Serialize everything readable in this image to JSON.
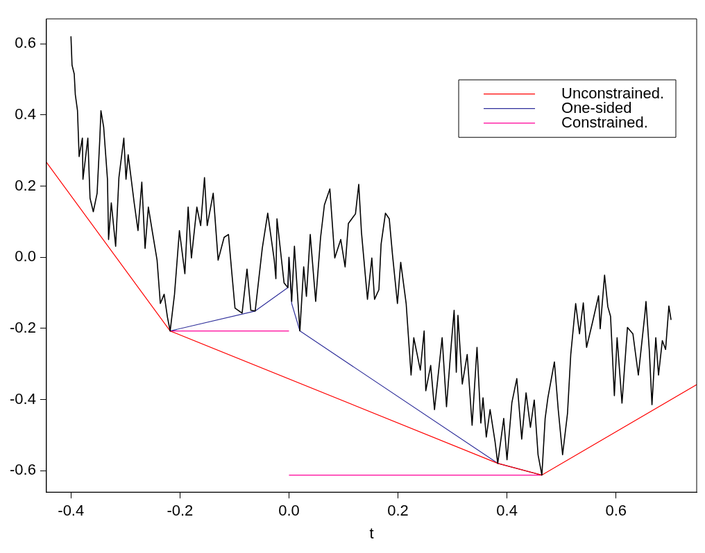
{
  "chart_data": {
    "type": "line",
    "xlabel": "t",
    "xlim": [
      -0.445,
      0.748
    ],
    "ylim": [
      -0.66,
      0.67
    ],
    "xticks": [
      {
        "value": -0.4,
        "label": "-0.4"
      },
      {
        "value": -0.2,
        "label": "-0.2"
      },
      {
        "value": 0,
        "label": "0.0"
      },
      {
        "value": 0.2,
        "label": "0.2"
      },
      {
        "value": 0.4,
        "label": "0.4"
      },
      {
        "value": 0.6,
        "label": "0.6"
      }
    ],
    "yticks": [
      {
        "value": -0.6,
        "label": "-0.6"
      },
      {
        "value": -0.4,
        "label": "-0.4"
      },
      {
        "value": -0.2,
        "label": "-0.2"
      },
      {
        "value": 0,
        "label": "0.0"
      },
      {
        "value": 0.2,
        "label": "0.2"
      },
      {
        "value": 0.4,
        "label": "0.4"
      },
      {
        "value": 0.6,
        "label": "0.6"
      }
    ],
    "grid": false,
    "legend": "top right",
    "marker": "none",
    "line_style": "solid",
    "series": [
      {
        "color": "#000000",
        "x": [
          -0.4,
          -0.398,
          -0.394,
          -0.392,
          -0.388,
          -0.385,
          -0.379,
          -0.378,
          -0.369,
          -0.365,
          -0.359,
          -0.352,
          -0.347,
          -0.345,
          -0.34,
          -0.333,
          -0.331,
          -0.326,
          -0.318,
          -0.312,
          -0.303,
          -0.299,
          -0.295,
          -0.284,
          -0.277,
          -0.27,
          -0.264,
          -0.258,
          -0.251,
          -0.242,
          -0.236,
          -0.229,
          -0.223,
          -0.218,
          -0.21,
          -0.201,
          -0.191,
          -0.185,
          -0.179,
          -0.169,
          -0.162,
          -0.155,
          -0.15,
          -0.139,
          -0.13,
          -0.119,
          -0.111,
          -0.105,
          -0.099,
          -0.086,
          -0.077,
          -0.07,
          -0.062,
          -0.049,
          -0.039,
          -0.027,
          -0.024,
          -0.022,
          -0.009,
          -0.002,
          0,
          0.005,
          0.01,
          0.02,
          0.027,
          0.032,
          0.039,
          0.049,
          0.058,
          0.065,
          0.075,
          0.084,
          0.095,
          0.103,
          0.109,
          0.122,
          0.128,
          0.133,
          0.144,
          0.152,
          0.157,
          0.165,
          0.169,
          0.177,
          0.184,
          0.19,
          0.199,
          0.205,
          0.215,
          0.224,
          0.229,
          0.241,
          0.248,
          0.251,
          0.26,
          0.267,
          0.281,
          0.289,
          0.298,
          0.303,
          0.307,
          0.31,
          0.318,
          0.327,
          0.336,
          0.345,
          0.352,
          0.356,
          0.362,
          0.369,
          0.378,
          0.383,
          0.394,
          0.4,
          0.409,
          0.418,
          0.427,
          0.435,
          0.443,
          0.45,
          0.457,
          0.464,
          0.47,
          0.475,
          0.487,
          0.494,
          0.502,
          0.511,
          0.517,
          0.526,
          0.533,
          0.54,
          0.546,
          0.557,
          0.568,
          0.571,
          0.579,
          0.585,
          0.59,
          0.597,
          0.602,
          0.611,
          0.621,
          0.631,
          0.641,
          0.653,
          0.655,
          0.661,
          0.666,
          0.673,
          0.678,
          0.685,
          0.691,
          0.697,
          0.701
        ],
        "values": [
          0.621,
          0.54,
          0.515,
          0.457,
          0.412,
          0.283,
          0.335,
          0.219,
          0.335,
          0.166,
          0.128,
          0.18,
          0.335,
          0.412,
          0.366,
          0.219,
          0.05,
          0.153,
          0.031,
          0.224,
          0.335,
          0.219,
          0.288,
          0.153,
          0.075,
          0.211,
          0.025,
          0.141,
          0.075,
          -0.008,
          -0.13,
          -0.104,
          -0.168,
          -0.207,
          -0.104,
          0.075,
          -0.046,
          0.141,
          -0.002,
          0.141,
          0.089,
          0.224,
          0.089,
          0.18,
          -0.008,
          0.056,
          0.064,
          -0.041,
          -0.143,
          -0.157,
          -0.033,
          -0.149,
          -0.151,
          0.025,
          0.124,
          -0.008,
          -0.06,
          0.108,
          -0.072,
          -0.085,
          0,
          -0.124,
          0.031,
          -0.207,
          -0.027,
          -0.11,
          0.064,
          -0.124,
          0.056,
          0.147,
          0.192,
          -0.002,
          0.05,
          -0.027,
          0.095,
          0.122,
          0.205,
          0.07,
          -0.118,
          -0.002,
          -0.118,
          -0.091,
          0.037,
          0.124,
          0.108,
          0.006,
          -0.13,
          -0.014,
          -0.13,
          -0.331,
          -0.226,
          -0.317,
          -0.207,
          -0.375,
          -0.304,
          -0.428,
          -0.226,
          -0.42,
          -0.24,
          -0.149,
          -0.323,
          -0.163,
          -0.356,
          -0.273,
          -0.472,
          -0.253,
          -0.466,
          -0.395,
          -0.505,
          -0.428,
          -0.517,
          -0.579,
          -0.453,
          -0.569,
          -0.408,
          -0.341,
          -0.511,
          -0.381,
          -0.478,
          -0.401,
          -0.555,
          -0.612,
          -0.453,
          -0.395,
          -0.294,
          -0.428,
          -0.555,
          -0.439,
          -0.273,
          -0.13,
          -0.215,
          -0.128,
          -0.253,
          -0.182,
          -0.108,
          -0.201,
          -0.05,
          -0.139,
          -0.166,
          -0.389,
          -0.226,
          -0.41,
          -0.197,
          -0.215,
          -0.331,
          -0.159,
          -0.124,
          -0.259,
          -0.414,
          -0.226,
          -0.331,
          -0.234,
          -0.259,
          -0.137,
          -0.176
        ]
      },
      {
        "name": "Unconstrained.",
        "color": "#ff0000",
        "x": [
          -0.445,
          -0.218,
          0.383,
          0.464,
          0.748
        ],
        "values": [
          0.267,
          -0.207,
          -0.579,
          -0.612,
          -0.358
        ]
      },
      {
        "name": "One-sided",
        "color": "#2e2e9a",
        "x": [
          -0.218,
          -0.062,
          -0.002,
          0,
          0.005,
          0.02,
          0.383,
          0.464
        ],
        "values": [
          -0.207,
          -0.151,
          -0.085,
          0,
          -0.13,
          -0.207,
          -0.579,
          -0.612
        ]
      },
      {
        "name": "Constrained.",
        "color": "#ff0099",
        "x": [
          -0.218,
          0,
          null,
          0,
          0.464
        ],
        "values": [
          -0.207,
          -0.207,
          null,
          -0.612,
          -0.612
        ]
      }
    ]
  }
}
